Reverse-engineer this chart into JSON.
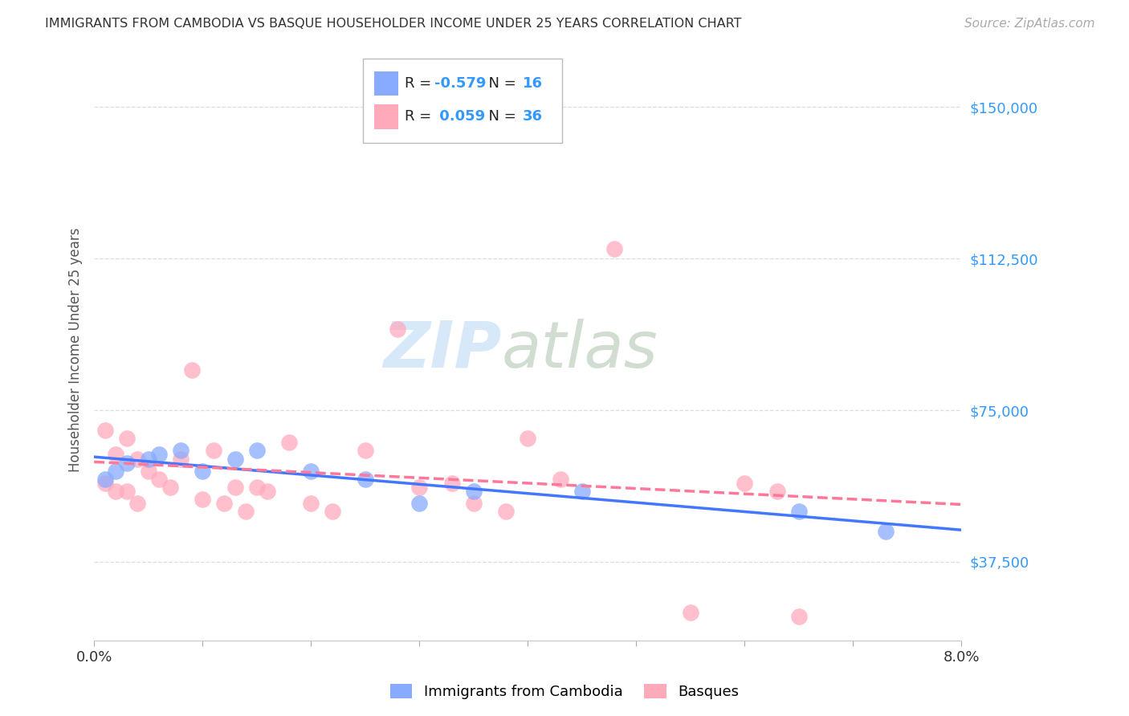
{
  "title": "IMMIGRANTS FROM CAMBODIA VS BASQUE HOUSEHOLDER INCOME UNDER 25 YEARS CORRELATION CHART",
  "source": "Source: ZipAtlas.com",
  "ylabel": "Householder Income Under 25 years",
  "yticks": [
    37500,
    75000,
    112500,
    150000
  ],
  "ytick_labels": [
    "$37,500",
    "$75,000",
    "$112,500",
    "$150,000"
  ],
  "xlim": [
    0.0,
    0.08
  ],
  "ylim": [
    18000,
    162000
  ],
  "legend1_R": "-0.579",
  "legend1_N": "16",
  "legend2_R": "0.059",
  "legend2_N": "36",
  "color_blue": "#88aaff",
  "color_pink": "#ffaabb",
  "line_blue": "#4477ff",
  "line_pink": "#ff7799",
  "background": "#ffffff",
  "watermark_zip": "ZIP",
  "watermark_atlas": "atlas",
  "cambodia_x": [
    0.001,
    0.002,
    0.003,
    0.005,
    0.006,
    0.008,
    0.01,
    0.013,
    0.015,
    0.02,
    0.025,
    0.03,
    0.035,
    0.045,
    0.065,
    0.073
  ],
  "cambodia_y": [
    58000,
    60000,
    62000,
    63000,
    64000,
    65000,
    60000,
    63000,
    65000,
    60000,
    58000,
    52000,
    55000,
    55000,
    50000,
    45000
  ],
  "basque_x": [
    0.001,
    0.001,
    0.002,
    0.002,
    0.003,
    0.003,
    0.004,
    0.004,
    0.005,
    0.006,
    0.007,
    0.008,
    0.009,
    0.01,
    0.011,
    0.012,
    0.013,
    0.014,
    0.015,
    0.016,
    0.018,
    0.02,
    0.022,
    0.025,
    0.028,
    0.03,
    0.033,
    0.035,
    0.038,
    0.04,
    0.043,
    0.048,
    0.055,
    0.06,
    0.063,
    0.065
  ],
  "basque_y": [
    70000,
    57000,
    64000,
    55000,
    68000,
    55000,
    63000,
    52000,
    60000,
    58000,
    56000,
    63000,
    85000,
    53000,
    65000,
    52000,
    56000,
    50000,
    56000,
    55000,
    67000,
    52000,
    50000,
    65000,
    95000,
    56000,
    57000,
    52000,
    50000,
    68000,
    58000,
    115000,
    25000,
    57000,
    55000,
    24000
  ]
}
